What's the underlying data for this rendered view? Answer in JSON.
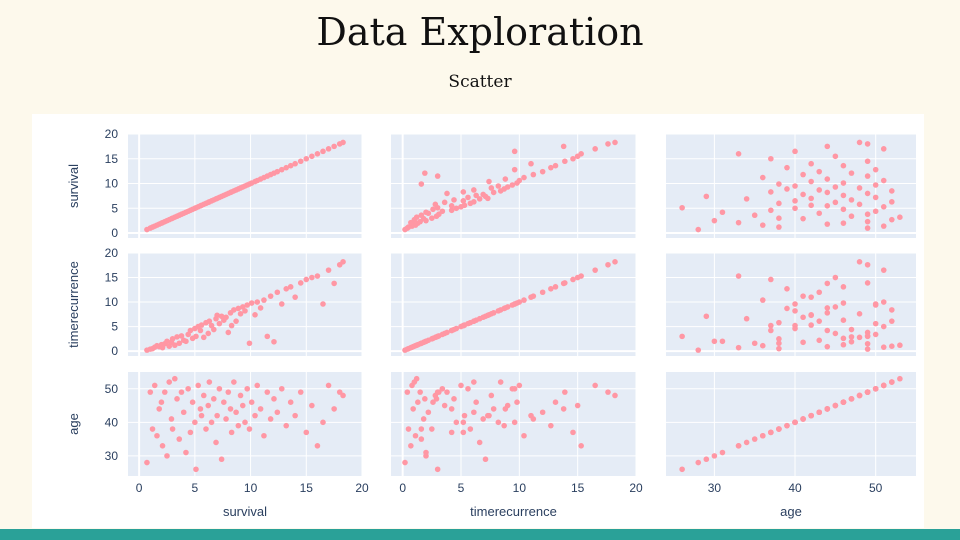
{
  "slide": {
    "title": "Data Exploration",
    "subtitle": "Scatter"
  },
  "chart_data": {
    "type": "scatter",
    "variables": [
      "survival",
      "timerecurrence",
      "age"
    ],
    "axes": {
      "survival": {
        "range": [
          -1,
          20
        ],
        "ticks": [
          0,
          5,
          10,
          15,
          20
        ]
      },
      "timerecurrence": {
        "range": [
          -1,
          20
        ],
        "ticks": [
          0,
          5,
          10,
          15,
          20
        ]
      },
      "age": {
        "range": [
          24,
          55
        ],
        "ticks": [
          30,
          40,
          50
        ]
      }
    },
    "records": [
      [
        0.7,
        0.2,
        28
      ],
      [
        1,
        0.4,
        49
      ],
      [
        1.2,
        0.5,
        38
      ],
      [
        1.4,
        0.8,
        51
      ],
      [
        1.6,
        1.1,
        36
      ],
      [
        1.8,
        0.9,
        44
      ],
      [
        2,
        1.3,
        46
      ],
      [
        2.1,
        0.7,
        33
      ],
      [
        2.3,
        1.5,
        49
      ],
      [
        2.5,
        2,
        30
      ],
      [
        2.7,
        1,
        52
      ],
      [
        2.9,
        1.8,
        41
      ],
      [
        3,
        2.5,
        38
      ],
      [
        3.2,
        1.2,
        53
      ],
      [
        3.4,
        2.9,
        47
      ],
      [
        3.6,
        1.6,
        35
      ],
      [
        3.8,
        3.1,
        49
      ],
      [
        4,
        2.2,
        43
      ],
      [
        4.2,
        2,
        31
      ],
      [
        4.4,
        3.4,
        50
      ],
      [
        4.6,
        4.2,
        37
      ],
      [
        4.8,
        2.6,
        46
      ],
      [
        5,
        4.6,
        40
      ],
      [
        5.1,
        3,
        26
      ],
      [
        5.3,
        5,
        51
      ],
      [
        5.5,
        4.2,
        44
      ],
      [
        5.6,
        5.3,
        42
      ],
      [
        5.8,
        2.8,
        48
      ],
      [
        6,
        5.8,
        38
      ],
      [
        6.2,
        3.6,
        45
      ],
      [
        6.3,
        6.1,
        52
      ],
      [
        6.5,
        5.2,
        40
      ],
      [
        6.7,
        4.4,
        47
      ],
      [
        6.9,
        6.6,
        34
      ],
      [
        7,
        7.3,
        42
      ],
      [
        7.2,
        5.6,
        50
      ],
      [
        7.4,
        7.1,
        29
      ],
      [
        7.6,
        6.3,
        46
      ],
      [
        7.8,
        6.9,
        41
      ],
      [
        8,
        3.8,
        49
      ],
      [
        8.2,
        7.8,
        44
      ],
      [
        8.3,
        5.2,
        37
      ],
      [
        8.5,
        8.4,
        52
      ],
      [
        8.7,
        6.1,
        43
      ],
      [
        8.9,
        8.7,
        39
      ],
      [
        9.1,
        7.6,
        48
      ],
      [
        9.3,
        9,
        45
      ],
      [
        9.5,
        8.2,
        40
      ],
      [
        9.7,
        9.4,
        50
      ],
      [
        9.9,
        1.6,
        38
      ],
      [
        10.1,
        9.8,
        46
      ],
      [
        10.4,
        7.4,
        42
      ],
      [
        10.6,
        10,
        51
      ],
      [
        10.9,
        8.8,
        44
      ],
      [
        11.2,
        10.4,
        36
      ],
      [
        11.5,
        3,
        49
      ],
      [
        11.8,
        11.2,
        41
      ],
      [
        12.1,
        1.9,
        47
      ],
      [
        12.4,
        12,
        43
      ],
      [
        12.8,
        9.6,
        50
      ],
      [
        13.2,
        12.7,
        39
      ],
      [
        13.6,
        13.1,
        46
      ],
      [
        14,
        11,
        42
      ],
      [
        14.5,
        13.9,
        49
      ],
      [
        15,
        14.6,
        37
      ],
      [
        15.5,
        15,
        45
      ],
      [
        16,
        15.3,
        33
      ],
      [
        16.5,
        9.6,
        40
      ],
      [
        17,
        16.5,
        51
      ],
      [
        17.5,
        13.8,
        44
      ],
      [
        18,
        17.6,
        49
      ],
      [
        18.3,
        18.2,
        48
      ]
    ]
  }
}
